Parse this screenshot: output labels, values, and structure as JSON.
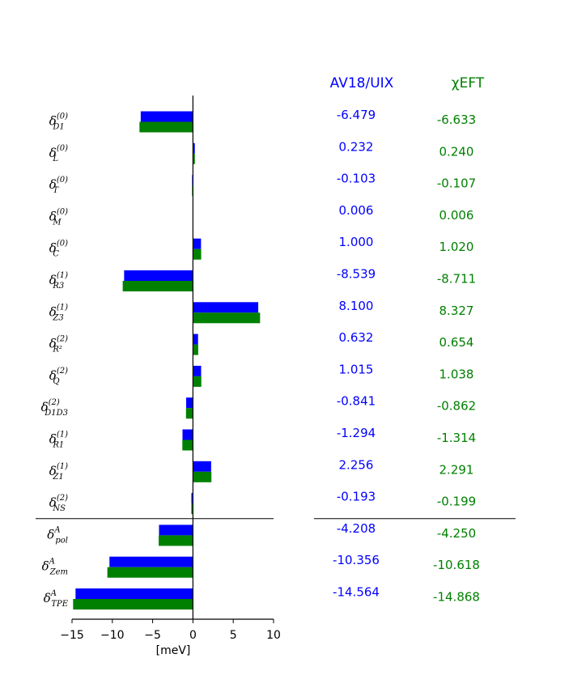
{
  "chart_data": {
    "type": "bar",
    "orientation": "horizontal",
    "xlabel": "[meV]",
    "xlim": [
      -15,
      10
    ],
    "xticks": [
      "−15",
      "−10",
      "−5",
      "0",
      "5",
      "10"
    ],
    "categories": [
      {
        "base": "δ",
        "sup": "(0)",
        "sub": "D1"
      },
      {
        "base": "δ",
        "sup": "(0)",
        "sub": "L"
      },
      {
        "base": "δ",
        "sup": "(0)",
        "sub": "T"
      },
      {
        "base": "δ",
        "sup": "(0)",
        "sub": "M"
      },
      {
        "base": "δ",
        "sup": "(0)",
        "sub": "C"
      },
      {
        "base": "δ",
        "sup": "(1)",
        "sub": "R3"
      },
      {
        "base": "δ",
        "sup": "(1)",
        "sub": "Z3"
      },
      {
        "base": "δ",
        "sup": "(2)",
        "sub": "R²"
      },
      {
        "base": "δ",
        "sup": "(2)",
        "sub": "Q"
      },
      {
        "base": "δ",
        "sup": "(2)",
        "sub": "D1D3"
      },
      {
        "base": "δ",
        "sup": "(1)",
        "sub": "R1"
      },
      {
        "base": "δ",
        "sup": "(1)",
        "sub": "Z1"
      },
      {
        "base": "δ",
        "sup": "(2)",
        "sub": "NS"
      },
      {
        "base": "δ",
        "sup": "A",
        "sub": "pol"
      },
      {
        "base": "δ",
        "sup": "A",
        "sub": "Zem"
      },
      {
        "base": "δ",
        "sup": "A",
        "sub": "TPE"
      }
    ],
    "separator_after_index": 12,
    "series": [
      {
        "name": "AV18/UIX",
        "color": "#0000ff",
        "values": [
          -6.479,
          0.232,
          -0.103,
          0.006,
          1.0,
          -8.539,
          8.1,
          0.632,
          1.015,
          -0.841,
          -1.294,
          2.256,
          -0.193,
          -4.208,
          -10.356,
          -14.564
        ],
        "labels": [
          "-6.479",
          "0.232",
          "-0.103",
          "0.006",
          "1.000",
          "-8.539",
          "8.100",
          "0.632",
          "1.015",
          "-0.841",
          "-1.294",
          "2.256",
          "-0.193",
          "-4.208",
          "-10.356",
          "-14.564"
        ]
      },
      {
        "name": "χEFT",
        "color": "#008000",
        "values": [
          -6.633,
          0.24,
          -0.107,
          0.006,
          1.02,
          -8.711,
          8.327,
          0.654,
          1.038,
          -0.862,
          -1.314,
          2.291,
          -0.199,
          -4.25,
          -10.618,
          -14.868
        ],
        "labels": [
          "-6.633",
          "0.240",
          "-0.107",
          "0.006",
          "1.020",
          "-8.711",
          "8.327",
          "0.654",
          "1.038",
          "-0.862",
          "-1.314",
          "2.291",
          "-0.199",
          "-4.250",
          "-10.618",
          "-14.868"
        ]
      }
    ]
  }
}
